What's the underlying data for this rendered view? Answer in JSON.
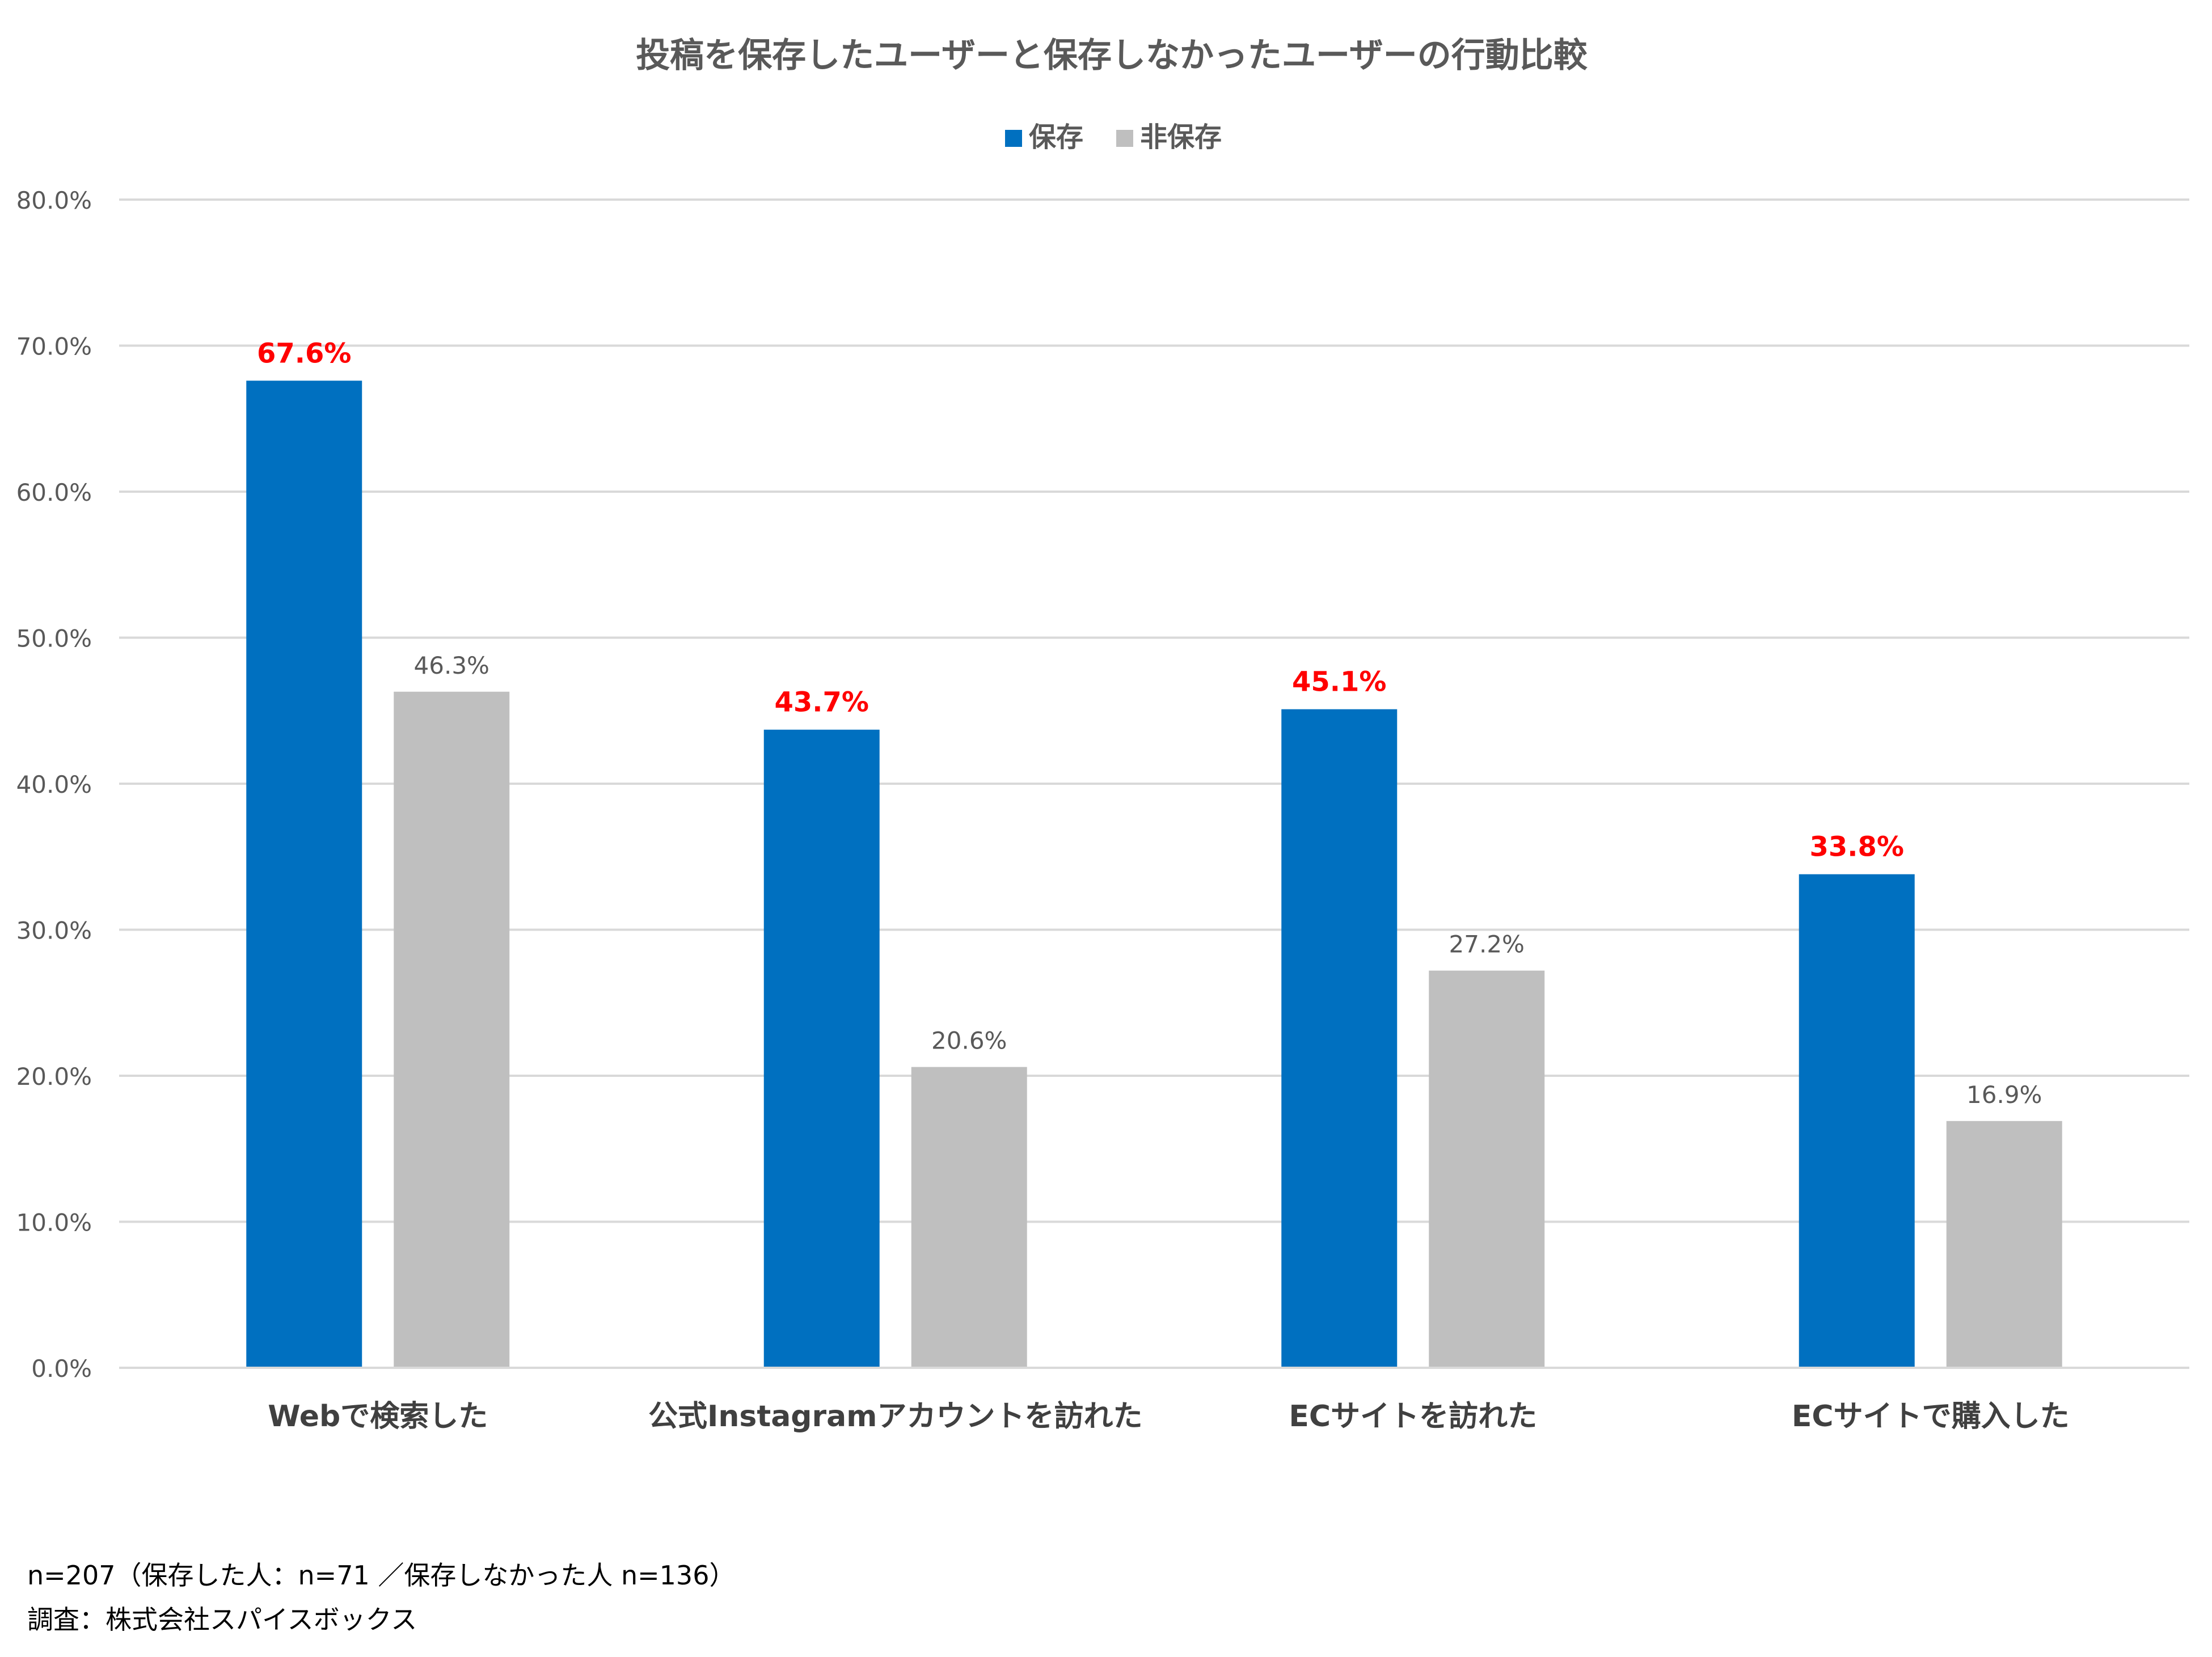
{
  "chart_data": {
    "type": "bar",
    "title": "投稿を保存したユーザーと保存しなかったユーザーの行動比較",
    "categories": [
      "Webで検索した",
      "公式Instagramアカウントを訪れた",
      "ECサイトを訪れた",
      "ECサイトで購入した"
    ],
    "series": [
      {
        "name": "保存",
        "values": [
          67.6,
          43.7,
          45.1,
          33.8
        ],
        "labels": [
          "67.6%",
          "43.7%",
          "45.1%",
          "33.8%"
        ],
        "color": "#0070C0",
        "label_color": "#FF0000"
      },
      {
        "name": "非保存",
        "values": [
          46.3,
          20.6,
          27.2,
          16.9
        ],
        "labels": [
          "46.3%",
          "20.6%",
          "27.2%",
          "16.9%"
        ],
        "color": "#BFBFBF",
        "label_color": "#595959"
      }
    ],
    "yticks": [
      0,
      10,
      20,
      30,
      40,
      50,
      60,
      70,
      80
    ],
    "ytick_labels": [
      "0.0%",
      "10.0%",
      "20.0%",
      "30.0%",
      "40.0%",
      "50.0%",
      "60.0%",
      "70.0%",
      "80.0%"
    ],
    "ylim": [
      0,
      80
    ],
    "xlabel": "",
    "ylabel": "",
    "legend_position": "top-center",
    "grid": true,
    "grid_color": "#D9D9D9"
  },
  "footnotes": {
    "sample": "n=207（保存した人：n=71 ／保存しなかった人 n=136）",
    "source": "調査：株式会社スパイスボックス"
  }
}
